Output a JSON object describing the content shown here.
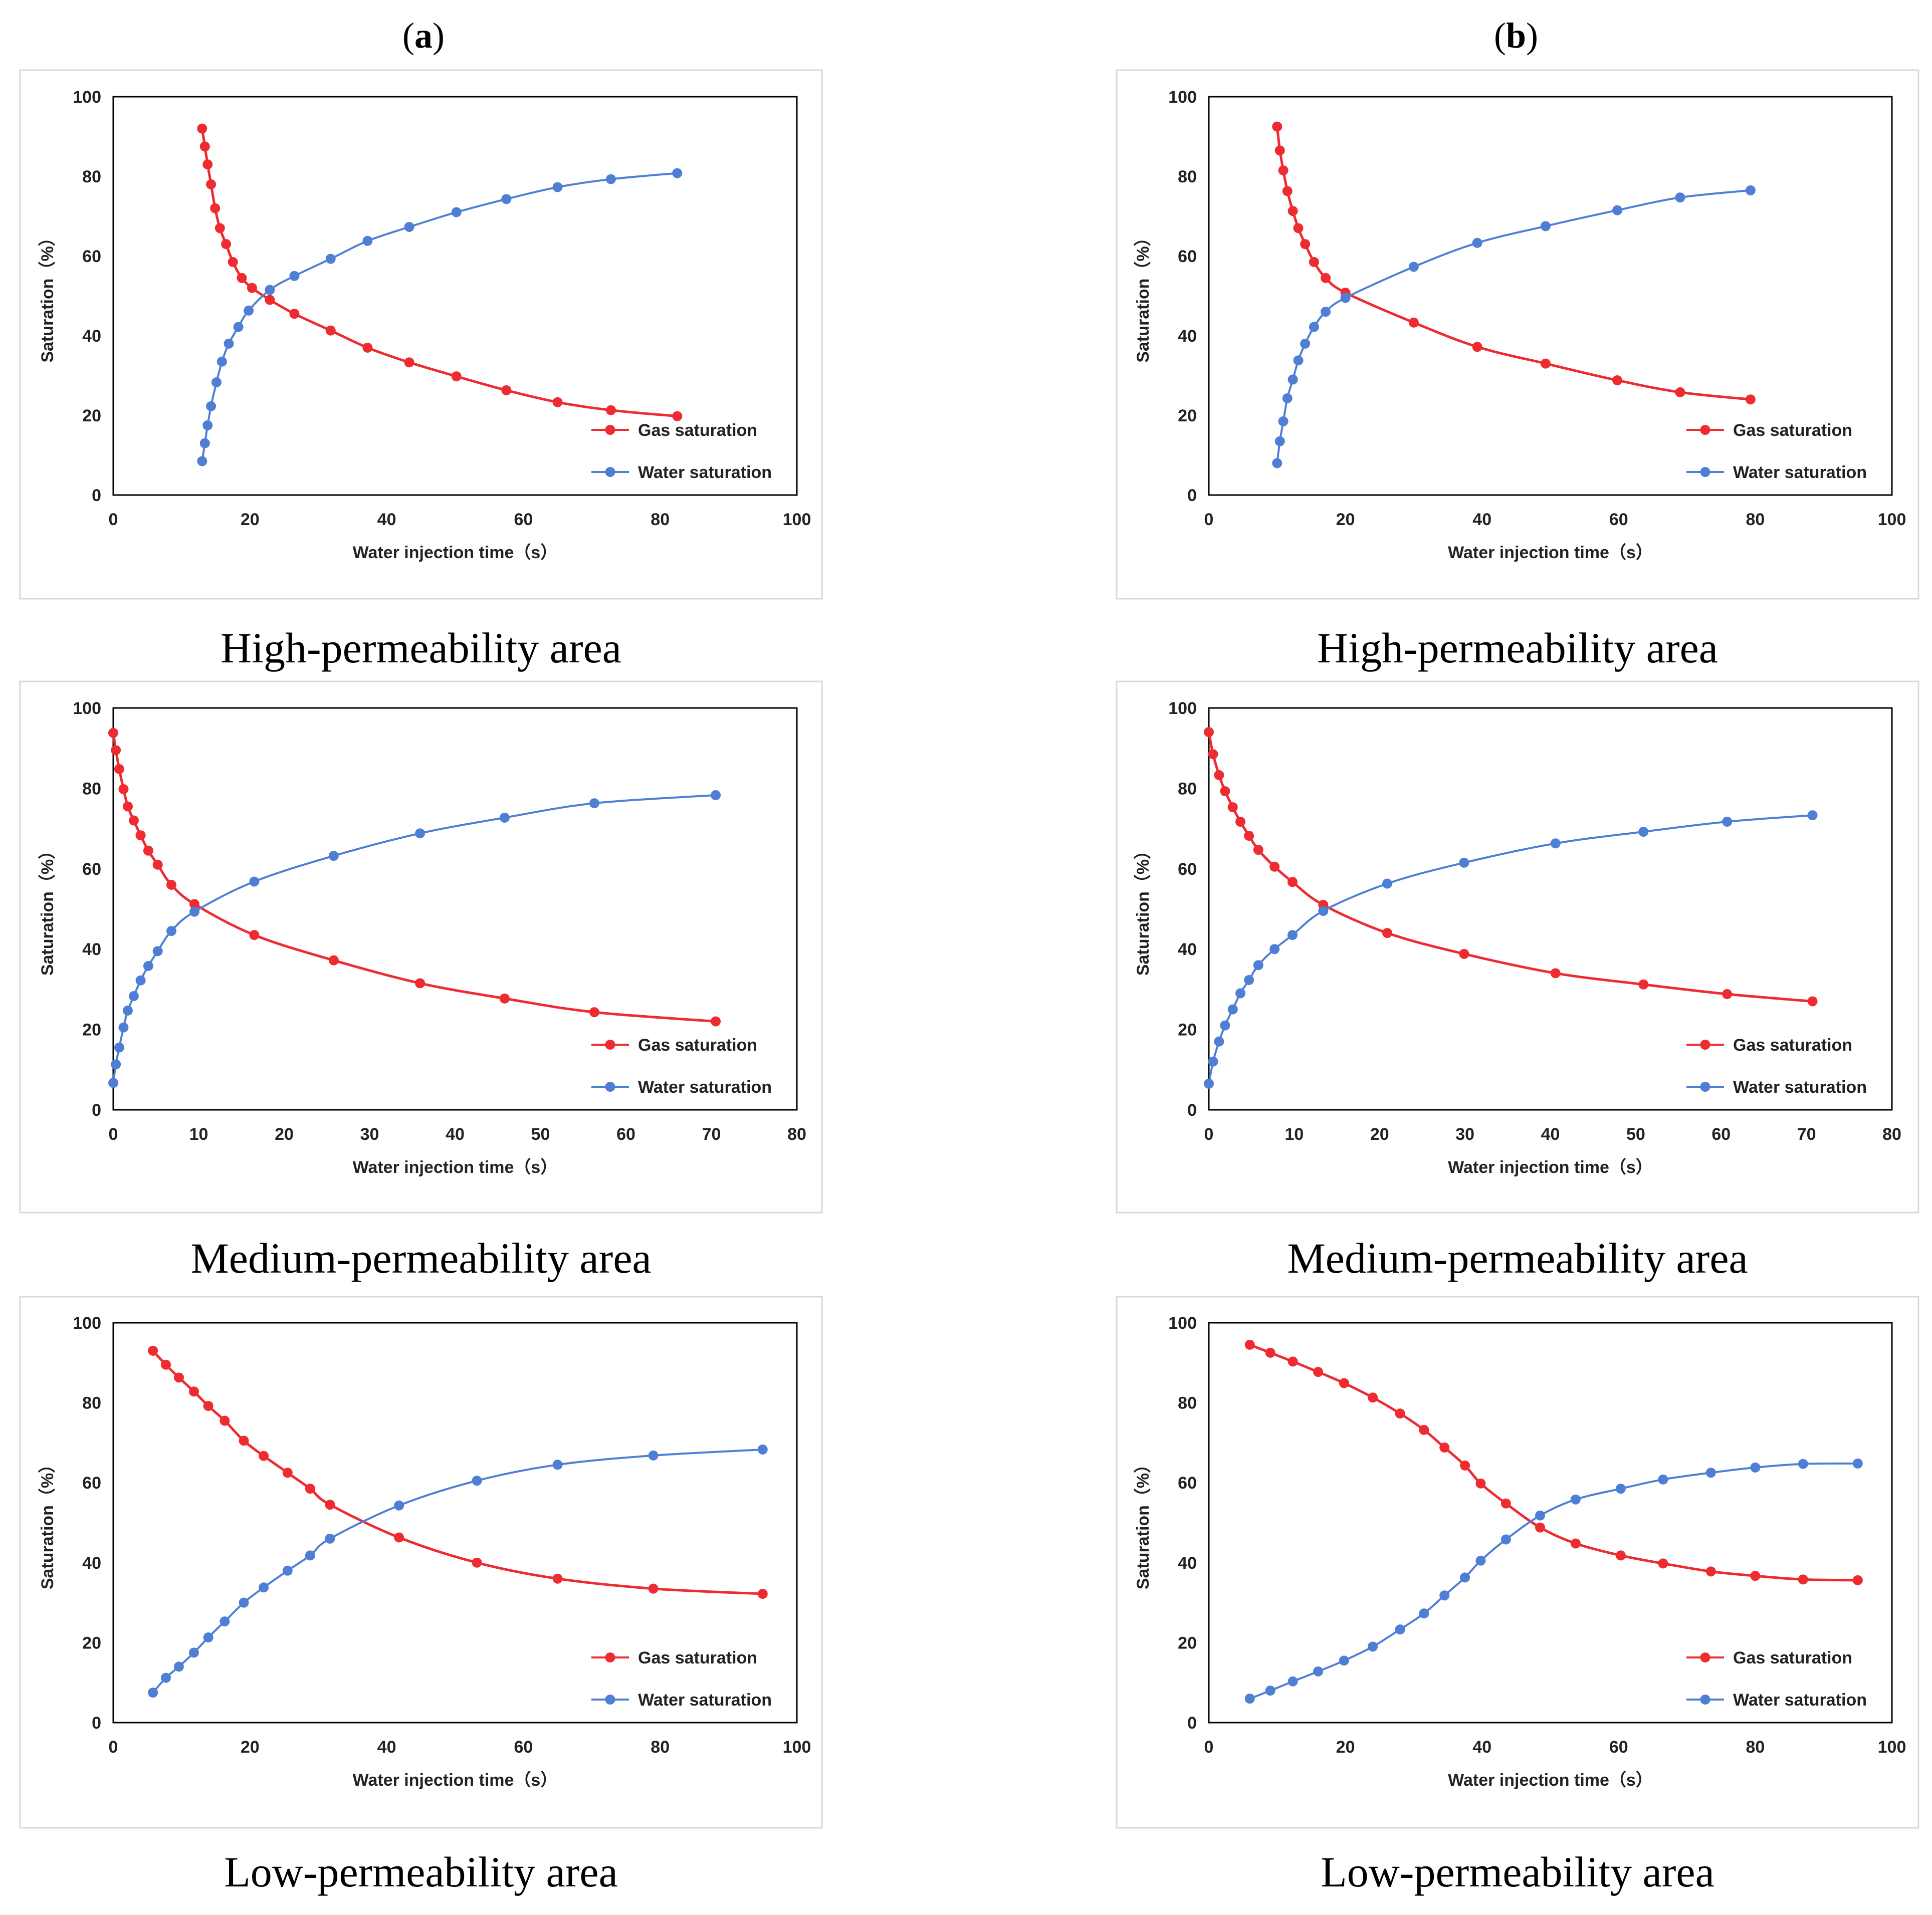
{
  "column_headers": [
    {
      "open": "(",
      "letter": "a",
      "close": ")"
    },
    {
      "open": "(",
      "letter": "b",
      "close": ")"
    }
  ],
  "colors": {
    "gas": "#ee2b31",
    "water": "#4f7fd4"
  },
  "chart_data": [
    {
      "type": "line",
      "panel": "a",
      "row": 0,
      "caption": "High-permeability area",
      "xlabel": "Water injection time（s）",
      "ylabel": "Saturation（%）",
      "xlim": [
        0,
        100
      ],
      "ylim": [
        0,
        100
      ],
      "xticks": [
        0,
        20,
        40,
        60,
        80,
        100
      ],
      "yticks": [
        0,
        20,
        40,
        60,
        80,
        100
      ],
      "legend": "bottom-right",
      "series": [
        {
          "name": "Gas saturation",
          "color": "#ee2b31",
          "x": [
            13,
            13.4,
            13.8,
            14.3,
            14.9,
            15.6,
            16.5,
            17.5,
            18.8,
            20.3,
            22.9,
            26.5,
            31.8,
            37.2,
            43.3,
            50.2,
            57.5,
            65,
            72.8,
            82.5
          ],
          "y": [
            92,
            87.5,
            83,
            78,
            72,
            67,
            63,
            58.5,
            54.5,
            52,
            49,
            45.5,
            41.3,
            37,
            33.3,
            29.8,
            26.3,
            23.3,
            21.3,
            19.8
          ]
        },
        {
          "name": "Water saturation",
          "color": "#4f7fd4",
          "x": [
            13,
            13.4,
            13.8,
            14.3,
            15.1,
            15.9,
            16.9,
            18.3,
            19.8,
            22.9,
            26.5,
            31.8,
            37.2,
            43.3,
            50.2,
            57.5,
            65,
            72.8,
            82.5
          ],
          "y": [
            8.5,
            13,
            17.5,
            22.3,
            28.3,
            33.5,
            38,
            42.2,
            46.3,
            51.5,
            55,
            59.3,
            63.8,
            67.3,
            71,
            74.3,
            77.3,
            79.3,
            80.8
          ]
        }
      ]
    },
    {
      "type": "line",
      "panel": "b",
      "row": 0,
      "caption": "High-permeability area",
      "xlabel": "Water injection time（s）",
      "ylabel": "Saturation（%）",
      "xlim": [
        0,
        100
      ],
      "ylim": [
        0,
        100
      ],
      "xticks": [
        0,
        20,
        40,
        60,
        80,
        100
      ],
      "yticks": [
        0,
        20,
        40,
        60,
        80,
        100
      ],
      "legend": "bottom-right",
      "series": [
        {
          "name": "Gas saturation",
          "color": "#ee2b31",
          "x": [
            10,
            10.4,
            10.9,
            11.5,
            12.3,
            13.1,
            14.1,
            15.4,
            17.1,
            20,
            30,
            39.3,
            49.3,
            59.8,
            69,
            79.3
          ],
          "y": [
            92.5,
            86.5,
            81.5,
            76.3,
            71.3,
            67,
            63,
            58.5,
            54.5,
            50.8,
            43.3,
            37.2,
            33,
            28.8,
            25.8,
            24
          ]
        },
        {
          "name": "Water saturation",
          "color": "#4f7fd4",
          "x": [
            10,
            10.4,
            10.9,
            11.5,
            12.3,
            13.1,
            14.1,
            15.4,
            17.1,
            20,
            30,
            39.3,
            49.3,
            59.8,
            69,
            79.3
          ],
          "y": [
            8,
            13.5,
            18.5,
            24.3,
            29,
            33.8,
            38,
            42.2,
            46,
            49.5,
            57.3,
            63.3,
            67.5,
            71.5,
            74.7,
            76.5
          ]
        }
      ]
    },
    {
      "type": "line",
      "panel": "a",
      "row": 1,
      "caption": "Medium-permeability area",
      "xlabel": "Water injection time（s）",
      "ylabel": "Saturation（%）",
      "xlim": [
        0,
        80
      ],
      "ylim": [
        0,
        100
      ],
      "xticks": [
        0,
        10,
        20,
        30,
        40,
        50,
        60,
        70,
        80
      ],
      "yticks": [
        0,
        20,
        40,
        60,
        80,
        100
      ],
      "legend": "bottom-right",
      "series": [
        {
          "name": "Gas saturation",
          "color": "#ee2b31",
          "x": [
            0,
            0.3,
            0.7,
            1.2,
            1.7,
            2.4,
            3.2,
            4.1,
            5.2,
            6.8,
            9.5,
            16.5,
            25.8,
            35.9,
            45.8,
            56.3,
            70.5
          ],
          "y": [
            93.8,
            89.5,
            84.8,
            79.8,
            75.5,
            72,
            68.3,
            64.5,
            61,
            56,
            51.2,
            43.5,
            37.2,
            31.5,
            27.7,
            24.3,
            22
          ]
        },
        {
          "name": "Water saturation",
          "color": "#4f7fd4",
          "x": [
            0,
            0.3,
            0.7,
            1.2,
            1.7,
            2.4,
            3.2,
            4.1,
            5.2,
            6.8,
            9.5,
            16.5,
            25.8,
            35.9,
            45.8,
            56.3,
            70.5
          ],
          "y": [
            6.7,
            11.3,
            15.5,
            20.5,
            24.7,
            28.3,
            32.2,
            35.8,
            39.5,
            44.5,
            49.3,
            56.8,
            63.2,
            68.8,
            72.7,
            76.3,
            78.3
          ]
        }
      ]
    },
    {
      "type": "line",
      "panel": "b",
      "row": 1,
      "caption": "Medium-permeability area",
      "xlabel": "Water injection time（s）",
      "ylabel": "Saturation（%）",
      "xlim": [
        0,
        80
      ],
      "ylim": [
        0,
        100
      ],
      "xticks": [
        0,
        10,
        20,
        30,
        40,
        50,
        60,
        70,
        80
      ],
      "yticks": [
        0,
        20,
        40,
        60,
        80,
        100
      ],
      "legend": "bottom-right",
      "series": [
        {
          "name": "Gas saturation",
          "color": "#ee2b31",
          "x": [
            0,
            0.5,
            1.2,
            1.9,
            2.8,
            3.7,
            4.7,
            5.8,
            7.7,
            9.8,
            13.4,
            20.9,
            29.9,
            40.6,
            50.9,
            60.7,
            70.7
          ],
          "y": [
            94,
            88.5,
            83.3,
            79.3,
            75.3,
            71.7,
            68.2,
            64.7,
            60.5,
            56.7,
            51,
            44,
            38.8,
            34,
            31.2,
            28.8,
            27
          ]
        },
        {
          "name": "Water saturation",
          "color": "#4f7fd4",
          "x": [
            0,
            0.5,
            1.2,
            1.9,
            2.8,
            3.7,
            4.7,
            5.8,
            7.7,
            9.8,
            13.4,
            20.9,
            29.9,
            40.6,
            50.9,
            60.7,
            70.7
          ],
          "y": [
            6.5,
            12,
            17,
            21,
            25,
            29,
            32.3,
            36,
            40,
            43.5,
            49.5,
            56.3,
            61.5,
            66.3,
            69.2,
            71.7,
            73.3
          ]
        }
      ]
    },
    {
      "type": "line",
      "panel": "a",
      "row": 2,
      "caption": "Low-permeability area",
      "xlabel": "Water injection time（s）",
      "ylabel": "Saturation（%）",
      "xlim": [
        0,
        100
      ],
      "ylim": [
        0,
        100
      ],
      "xticks": [
        0,
        20,
        40,
        60,
        80,
        100
      ],
      "yticks": [
        0,
        20,
        40,
        60,
        80,
        100
      ],
      "legend": "bottom-right",
      "series": [
        {
          "name": "Gas saturation",
          "color": "#ee2b31",
          "x": [
            5.8,
            7.7,
            9.6,
            11.8,
            13.9,
            16.3,
            19.1,
            22,
            25.5,
            28.8,
            31.7,
            41.8,
            53.2,
            65,
            79,
            95
          ],
          "y": [
            93,
            89.5,
            86.3,
            82.8,
            79.2,
            75.5,
            70.5,
            66.7,
            62.5,
            58.5,
            54.5,
            46.3,
            40,
            36,
            33.5,
            32.2
          ]
        },
        {
          "name": "Water saturation",
          "color": "#4f7fd4",
          "x": [
            5.8,
            7.7,
            9.6,
            11.8,
            13.9,
            16.3,
            19.1,
            22,
            25.5,
            28.8,
            31.7,
            41.8,
            53.2,
            65,
            79,
            95
          ],
          "y": [
            7.5,
            11.2,
            14,
            17.5,
            21.3,
            25.3,
            30,
            33.8,
            38,
            41.8,
            46,
            54.3,
            60.5,
            64.5,
            66.8,
            68.3
          ]
        }
      ]
    },
    {
      "type": "line",
      "panel": "b",
      "row": 2,
      "caption": "Low-permeability area",
      "xlabel": "Water injection time（s）",
      "ylabel": "Saturation（%）",
      "xlim": [
        0,
        100
      ],
      "ylim": [
        0,
        100
      ],
      "xticks": [
        0,
        20,
        40,
        60,
        80,
        100
      ],
      "yticks": [
        0,
        20,
        40,
        60,
        80,
        100
      ],
      "legend": "bottom-right",
      "series": [
        {
          "name": "Gas saturation",
          "color": "#ee2b31",
          "x": [
            6,
            9,
            12.3,
            16,
            19.8,
            24,
            28,
            31.5,
            34.5,
            37.5,
            39.8,
            43.5,
            48.5,
            53.7,
            60.3,
            66.5,
            73.5,
            80,
            87,
            95
          ],
          "y": [
            94.5,
            92.5,
            90.3,
            87.7,
            84.9,
            81.3,
            77.3,
            73.2,
            68.8,
            64.3,
            59.8,
            54.8,
            48.8,
            44.8,
            41.8,
            39.8,
            37.8,
            36.7,
            35.8,
            35.6
          ]
        },
        {
          "name": "Water saturation",
          "color": "#4f7fd4",
          "x": [
            6,
            9,
            12.3,
            16,
            19.8,
            24,
            28,
            31.5,
            34.5,
            37.5,
            39.8,
            43.5,
            48.5,
            53.7,
            60.3,
            66.5,
            73.5,
            80,
            87,
            95
          ],
          "y": [
            6,
            8,
            10.3,
            12.8,
            15.5,
            19,
            23.3,
            27.3,
            31.8,
            36.3,
            40.5,
            45.8,
            51.8,
            55.8,
            58.5,
            60.8,
            62.5,
            63.8,
            64.7,
            64.8
          ]
        }
      ]
    }
  ]
}
